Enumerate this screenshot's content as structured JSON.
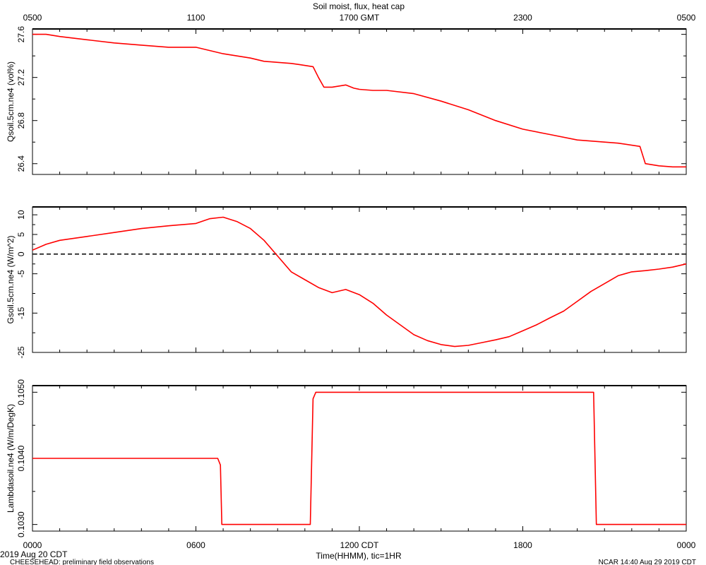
{
  "chart_data": {
    "type": "line",
    "title": "Soil moist, flux, heat cap",
    "top_axis": {
      "ticks": [
        {
          "hour": 0,
          "label": "0500"
        },
        {
          "hour": 6,
          "label": "1100"
        },
        {
          "hour": 12,
          "label": "1700 GMT"
        },
        {
          "hour": 18,
          "label": "2300"
        },
        {
          "hour": 24,
          "label": "0500"
        }
      ]
    },
    "bottom_axis": {
      "xlabel": "Time(HHMM), tic=1HR",
      "ticks": [
        {
          "hour": 0,
          "label": "0000"
        },
        {
          "hour": 6,
          "label": "0600"
        },
        {
          "hour": 12,
          "label": "1200 CDT"
        },
        {
          "hour": 18,
          "label": "1800"
        },
        {
          "hour": 24,
          "label": "0000"
        }
      ]
    },
    "footer": {
      "date_label": "2019 Aug 20 CDT",
      "note_label": "CHEESEHEAD: preliminary field observations",
      "credit_label": "NCAR 14:40 Aug 29 2019 CDT"
    },
    "line_color": "#ff0000",
    "panels": [
      {
        "ylabel": "Qsoil.5cm.ne4 (vol%)",
        "ylim": [
          26.3,
          27.65
        ],
        "yticks": [
          {
            "v": 26.4,
            "label": "26.4"
          },
          {
            "v": 26.8,
            "label": "26.8"
          },
          {
            "v": 27.2,
            "label": "27.2"
          },
          {
            "v": 27.6,
            "label": "27.6"
          }
        ],
        "series": [
          {
            "x": [
              0,
              0.5,
              1,
              2,
              3,
              4,
              5,
              6,
              6.5,
              7,
              8,
              8.5,
              9,
              9.5,
              9.8,
              10.3,
              10.5,
              10.7,
              11,
              11.5,
              11.8,
              12,
              12.5,
              13,
              14,
              15,
              16,
              17,
              18,
              19,
              20,
              21.5,
              22.3,
              22.5,
              23,
              23.5,
              24
            ],
            "y": [
              27.6,
              27.6,
              27.58,
              27.55,
              27.52,
              27.5,
              27.48,
              27.48,
              27.45,
              27.42,
              27.38,
              27.35,
              27.34,
              27.33,
              27.32,
              27.3,
              27.2,
              27.11,
              27.11,
              27.13,
              27.1,
              27.09,
              27.08,
              27.08,
              27.05,
              26.98,
              26.9,
              26.8,
              26.72,
              26.67,
              26.62,
              26.59,
              26.56,
              26.4,
              26.38,
              26.37,
              26.37
            ]
          }
        ]
      },
      {
        "ylabel": "Gsoil.5cm.ne4 (W/m^2)",
        "ylim": [
          -25,
          12
        ],
        "yticks": [
          {
            "v": -25,
            "label": "-25"
          },
          {
            "v": -15,
            "label": "-15"
          },
          {
            "v": -5,
            "label": "-5"
          },
          {
            "v": 0,
            "label": "0"
          },
          {
            "v": 5,
            "label": "5"
          },
          {
            "v": 10,
            "label": "10"
          }
        ],
        "zero_line": true,
        "series": [
          {
            "x": [
              0,
              0.5,
              1,
              2,
              3,
              4,
              5,
              6,
              6.5,
              7,
              7.5,
              8,
              8.5,
              9,
              9.5,
              10,
              10.5,
              11,
              11.5,
              12,
              12.5,
              13,
              13.5,
              14,
              14.5,
              15,
              15.5,
              16,
              16.5,
              17,
              17.5,
              18,
              18.5,
              19,
              19.5,
              20,
              20.5,
              21,
              21.5,
              22,
              22.5,
              23,
              23.5,
              24
            ],
            "y": [
              1,
              2.5,
              3.5,
              4.5,
              5.5,
              6.5,
              7.2,
              7.8,
              9,
              9.4,
              8.3,
              6.5,
              3.5,
              -0.5,
              -4.5,
              -6.5,
              -8.5,
              -9.8,
              -9,
              -10.3,
              -12.5,
              -15.5,
              -18,
              -20.5,
              -22,
              -23,
              -23.5,
              -23.2,
              -22.5,
              -21.8,
              -21,
              -19.5,
              -18,
              -16.2,
              -14.5,
              -12,
              -9.5,
              -7.5,
              -5.5,
              -4.5,
              -4.2,
              -3.8,
              -3.3,
              -2.5
            ]
          }
        ]
      },
      {
        "ylabel": "Lambdasoil.ne4 (W/m/DegK)",
        "ylim": [
          0.1029,
          0.1051
        ],
        "yticks": [
          {
            "v": 0.103,
            "label": "0.1030"
          },
          {
            "v": 0.104,
            "label": "0.1040"
          },
          {
            "v": 0.105,
            "label": "0.1050"
          }
        ],
        "series": [
          {
            "x": [
              0,
              6.8,
              6.9,
              6.95,
              10.2,
              10.3,
              10.4,
              20.6,
              20.7,
              24
            ],
            "y": [
              0.104,
              0.104,
              0.1039,
              0.103,
              0.103,
              0.1049,
              0.105,
              0.105,
              0.103,
              0.103
            ]
          }
        ]
      }
    ]
  }
}
